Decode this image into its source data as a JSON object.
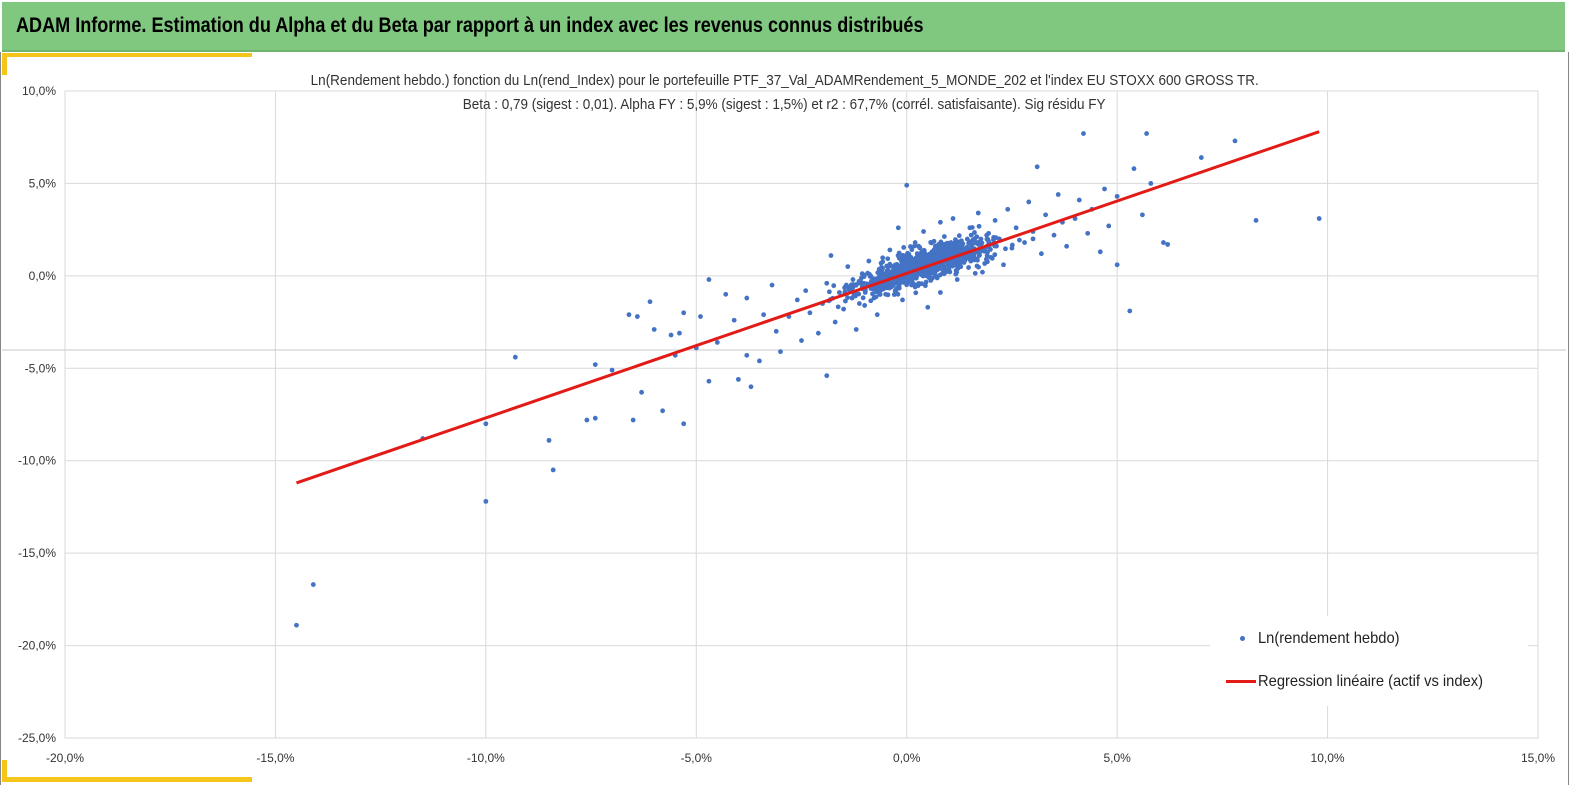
{
  "banner": {
    "title": "ADAM Informe. Estimation du Alpha et du Beta par rapport à un index avec les revenus connus distribués"
  },
  "chart_data": {
    "type": "scatter",
    "title": "Ln(Rendement hebdo.) fonction du Ln(rend_Index) pour le portefeuille PTF_37_Val_ADAMRendement_5_MONDE_202 et l'index EU STOXX 600 GROSS TR.",
    "subtitle": "Beta : 0,79 (sigest : 0,01).  Alpha FY : 5,9% (sigest : 1,5%) et r2 : 67,7% (corrél. satisfaisante). Sig résidu FY",
    "xlabel": "",
    "ylabel": "",
    "xlim": [
      -20,
      15
    ],
    "ylim": [
      -25,
      10
    ],
    "x_ticks": [
      "-20,0%",
      "-15,0%",
      "-10,0%",
      "-5,0%",
      "0,0%",
      "5,0%",
      "10,0%",
      "15,0%"
    ],
    "y_ticks": [
      "10,0%",
      "5,0%",
      "0,0%",
      "-5,0%",
      "-10,0%",
      "-15,0%",
      "-20,0%",
      "-25,0%"
    ],
    "grid": true,
    "legend_position": "bottom-right",
    "series": [
      {
        "name": "Ln(rendement hebdo)",
        "kind": "scatter",
        "color": "#4472c4",
        "points": [
          [
            -14.5,
            -18.9
          ],
          [
            -14.1,
            -16.7
          ],
          [
            -11.5,
            -8.8
          ],
          [
            -10.0,
            -12.2
          ],
          [
            -10.0,
            -8.0
          ],
          [
            -9.3,
            -4.4
          ],
          [
            -8.5,
            -8.9
          ],
          [
            -8.4,
            -10.5
          ],
          [
            -7.6,
            -7.8
          ],
          [
            -7.4,
            -7.7
          ],
          [
            -7.4,
            -4.8
          ],
          [
            -7.0,
            -5.1
          ],
          [
            -6.6,
            -2.1
          ],
          [
            -6.5,
            -7.8
          ],
          [
            -6.4,
            -2.2
          ],
          [
            -6.3,
            -6.3
          ],
          [
            -6.1,
            -1.4
          ],
          [
            -6.0,
            -2.9
          ],
          [
            -5.8,
            -7.3
          ],
          [
            -5.6,
            -3.2
          ],
          [
            -5.5,
            -4.3
          ],
          [
            -5.4,
            -3.1
          ],
          [
            -5.3,
            -8.0
          ],
          [
            -5.3,
            -2.0
          ],
          [
            -5.0,
            -3.9
          ],
          [
            -4.9,
            -2.2
          ],
          [
            -4.7,
            -5.7
          ],
          [
            -4.7,
            -0.2
          ],
          [
            -4.5,
            -3.6
          ],
          [
            -4.3,
            -1.0
          ],
          [
            -4.1,
            -2.4
          ],
          [
            -4.0,
            -5.6
          ],
          [
            -3.8,
            -4.3
          ],
          [
            -3.8,
            -1.2
          ],
          [
            -3.7,
            -6.0
          ],
          [
            -3.5,
            -4.6
          ],
          [
            -3.4,
            -2.1
          ],
          [
            -3.2,
            -0.5
          ],
          [
            -3.1,
            -3.0
          ],
          [
            -3.0,
            -4.1
          ],
          [
            -2.8,
            -2.2
          ],
          [
            -2.6,
            -1.3
          ],
          [
            -2.5,
            -3.5
          ],
          [
            -2.4,
            -0.8
          ],
          [
            -2.3,
            -2.0
          ],
          [
            -2.1,
            -3.1
          ],
          [
            -2.0,
            -1.5
          ],
          [
            -1.9,
            -5.4
          ],
          [
            -1.9,
            -0.4
          ],
          [
            -1.8,
            1.1
          ],
          [
            -1.7,
            -2.5
          ],
          [
            -1.6,
            -0.9
          ],
          [
            -1.5,
            -1.8
          ],
          [
            -1.4,
            0.5
          ],
          [
            -1.3,
            -1.2
          ],
          [
            -1.2,
            -2.9
          ],
          [
            -1.1,
            -0.3
          ],
          [
            -1.0,
            -1.6
          ],
          [
            -0.9,
            0.8
          ],
          [
            -0.8,
            -0.7
          ],
          [
            -0.7,
            -2.1
          ],
          [
            -0.6,
            0.2
          ],
          [
            -0.5,
            -1.0
          ],
          [
            -0.4,
            1.4
          ],
          [
            -0.3,
            -0.4
          ],
          [
            -0.2,
            2.6
          ],
          [
            -0.1,
            -1.3
          ],
          [
            0.0,
            0.3
          ],
          [
            0.0,
            4.9
          ],
          [
            0.1,
            1.0
          ],
          [
            0.2,
            -0.6
          ],
          [
            0.2,
            1.8
          ],
          [
            0.3,
            0.1
          ],
          [
            0.4,
            2.4
          ],
          [
            0.5,
            -1.7
          ],
          [
            0.6,
            1.3
          ],
          [
            0.7,
            0.4
          ],
          [
            0.8,
            2.9
          ],
          [
            0.8,
            -0.9
          ],
          [
            0.9,
            1.6
          ],
          [
            1.0,
            0.7
          ],
          [
            1.1,
            3.1
          ],
          [
            1.2,
            -0.2
          ],
          [
            1.3,
            1.9
          ],
          [
            1.4,
            0.9
          ],
          [
            1.5,
            2.6
          ],
          [
            1.6,
            1.2
          ],
          [
            1.7,
            3.4
          ],
          [
            1.8,
            0.2
          ],
          [
            1.9,
            2.2
          ],
          [
            2.0,
            1.0
          ],
          [
            2.1,
            3.0
          ],
          [
            2.2,
            2.0
          ],
          [
            2.3,
            0.6
          ],
          [
            2.4,
            3.6
          ],
          [
            2.5,
            1.5
          ],
          [
            2.6,
            2.6
          ],
          [
            2.8,
            1.8
          ],
          [
            2.9,
            4.0
          ],
          [
            3.0,
            2.4
          ],
          [
            3.1,
            5.9
          ],
          [
            3.2,
            1.2
          ],
          [
            3.3,
            3.3
          ],
          [
            3.5,
            2.2
          ],
          [
            3.6,
            4.4
          ],
          [
            3.7,
            2.9
          ],
          [
            3.8,
            1.6
          ],
          [
            4.0,
            3.1
          ],
          [
            4.1,
            4.1
          ],
          [
            4.2,
            7.7
          ],
          [
            4.3,
            2.3
          ],
          [
            4.4,
            3.6
          ],
          [
            4.6,
            1.3
          ],
          [
            4.7,
            4.7
          ],
          [
            4.8,
            2.7
          ],
          [
            5.0,
            4.3
          ],
          [
            5.0,
            0.6
          ],
          [
            5.3,
            -1.9
          ],
          [
            5.4,
            5.8
          ],
          [
            5.6,
            3.3
          ],
          [
            5.7,
            7.7
          ],
          [
            5.8,
            5.0
          ],
          [
            6.1,
            1.8
          ],
          [
            6.2,
            1.7
          ],
          [
            7.0,
            6.4
          ],
          [
            7.8,
            7.3
          ],
          [
            8.3,
            3.0
          ],
          [
            9.8,
            3.1
          ]
        ]
      },
      {
        "name": "Regression linéaire (actif vs index)",
        "kind": "line",
        "color": "#e31b17",
        "points": [
          [
            -14.5,
            -11.2
          ],
          [
            9.8,
            7.8
          ]
        ]
      }
    ]
  }
}
